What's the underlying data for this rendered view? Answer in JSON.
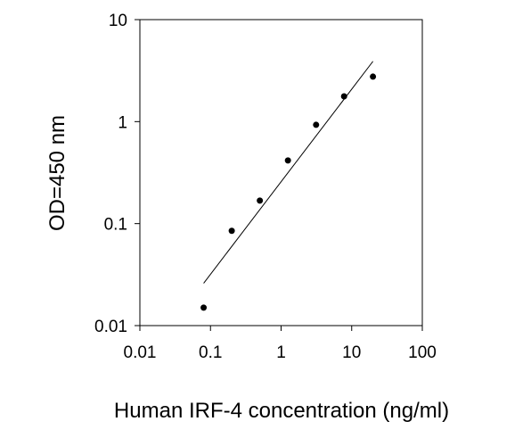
{
  "chart_data": {
    "type": "scatter",
    "x_label": "Human IRF-4 concentration (ng/ml)",
    "y_label": "OD=450 nm",
    "x_scale": "log",
    "y_scale": "log",
    "xlim": [
      0.01,
      100
    ],
    "ylim": [
      0.01,
      10
    ],
    "xticks": [
      0.01,
      0.1,
      1,
      10,
      100
    ],
    "yticks": [
      0.01,
      0.1,
      1,
      10
    ],
    "color": "#000000",
    "x": [
      0.08,
      0.2,
      0.5,
      1.25,
      3.13,
      7.8,
      20
    ],
    "values": [
      0.015,
      0.085,
      0.168,
      0.416,
      0.93,
      1.77,
      2.76
    ],
    "fit": {
      "x": [
        0.08,
        20
      ],
      "values": [
        0.026,
        3.9
      ]
    }
  }
}
